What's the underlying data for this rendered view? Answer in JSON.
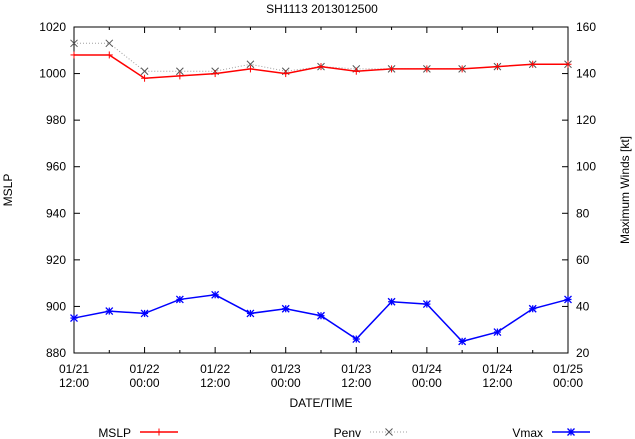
{
  "chart_data": {
    "type": "line",
    "title": "SH1113 2013012500",
    "xlabel": "DATE/TIME",
    "ylabel": "MSLP",
    "y2label": "Maximum Winds [kt]",
    "x": [
      "01/21 12:00",
      "01/21 18:00",
      "01/22 00:00",
      "01/22 06:00",
      "01/22 12:00",
      "01/22 18:00",
      "01/23 00:00",
      "01/23 06:00",
      "01/23 12:00",
      "01/23 18:00",
      "01/24 00:00",
      "01/24 06:00",
      "01/24 12:00",
      "01/24 18:00",
      "01/25 00:00"
    ],
    "x_ticks": [
      {
        "line1": "01/21",
        "line2": "12:00"
      },
      {
        "line1": "01/22",
        "line2": "00:00"
      },
      {
        "line1": "01/22",
        "line2": "12:00"
      },
      {
        "line1": "01/23",
        "line2": "00:00"
      },
      {
        "line1": "01/23",
        "line2": "12:00"
      },
      {
        "line1": "01/24",
        "line2": "00:00"
      },
      {
        "line1": "01/24",
        "line2": "12:00"
      },
      {
        "line1": "01/25",
        "line2": "00:00"
      }
    ],
    "ylim": [
      880,
      1020
    ],
    "y_ticks": [
      1020,
      1000,
      980,
      960,
      940,
      920,
      900,
      880
    ],
    "y2lim": [
      20,
      160
    ],
    "y2_ticks": [
      160,
      140,
      120,
      100,
      80,
      60,
      40,
      20
    ],
    "grid": false,
    "legend_position": "bottom",
    "series": [
      {
        "name": "MSLP",
        "axis": "left",
        "color": "#ff0000",
        "marker": "plus",
        "style": "solid",
        "values": [
          1008,
          1008,
          998,
          999,
          1000,
          1002,
          1000,
          1003,
          1001,
          1002,
          1002,
          1002,
          1003,
          1004,
          1004
        ]
      },
      {
        "name": "Penv",
        "axis": "left",
        "color": "#a0a0a0",
        "marker": "x",
        "style": "dotted",
        "values": [
          1013,
          1013,
          1001,
          1001,
          1001,
          1004,
          1001,
          1003,
          1002,
          1002,
          1002,
          1002,
          1003,
          1004,
          1004
        ]
      },
      {
        "name": "Vmax",
        "axis": "right",
        "color": "#0000ff",
        "marker": "star",
        "style": "solid",
        "values": [
          35,
          38,
          37,
          43,
          45,
          37,
          39,
          36,
          26,
          42,
          41,
          25,
          29,
          39,
          43
        ]
      }
    ]
  }
}
